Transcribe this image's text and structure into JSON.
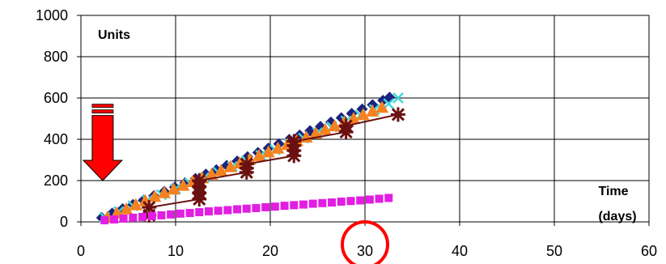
{
  "chart_data": {
    "type": "scatter",
    "title": "",
    "ylabel": "Units",
    "xlabel_line1": "Time",
    "xlabel_line2": "(days)",
    "xlim": [
      0,
      60
    ],
    "ylim": [
      0,
      1000
    ],
    "xticks": [
      0,
      10,
      20,
      30,
      40,
      50,
      60
    ],
    "yticks": [
      0,
      200,
      400,
      600,
      800,
      1000
    ],
    "grid": true,
    "legend": "none",
    "series": [
      {
        "color": "#1a237e",
        "marker": "diamond",
        "line": false,
        "x": [
          2.2,
          3.3,
          4.4,
          5.5,
          6.6,
          7.7,
          8.8,
          9.9,
          11.0,
          12.1,
          13.2,
          14.3,
          15.4,
          16.5,
          17.6,
          18.7,
          19.8,
          20.9,
          22.0,
          23.1,
          24.2,
          25.3,
          26.4,
          27.5,
          28.6,
          29.7,
          30.8,
          31.9,
          32.6
        ],
        "y": [
          20,
          42,
          63,
          84,
          105,
          126,
          147,
          168,
          189,
          210,
          231,
          252,
          273,
          294,
          315,
          336,
          357,
          378,
          399,
          420,
          441,
          462,
          483,
          504,
          525,
          546,
          567,
          588,
          603
        ]
      },
      {
        "color": "#40d8d8",
        "marker": "x",
        "line": false,
        "x": [
          2.5,
          4.0,
          5.5,
          7.0,
          8.5,
          10.0,
          11.5,
          13.0,
          14.5,
          16.0,
          17.5,
          19.0,
          20.5,
          22.0,
          23.5,
          25.0,
          26.5,
          28.0,
          29.5,
          31.0,
          32.5,
          33.5
        ],
        "y": [
          22,
          50,
          78,
          104,
          132,
          160,
          188,
          214,
          240,
          268,
          296,
          322,
          350,
          378,
          406,
          432,
          460,
          488,
          516,
          544,
          572,
          600
        ]
      },
      {
        "color": "#f58220",
        "marker": "triangle",
        "line": false,
        "x": [
          2.8,
          3.8,
          4.8,
          5.8,
          6.8,
          7.8,
          8.8,
          9.8,
          10.8,
          11.8,
          12.8,
          13.8,
          14.8,
          15.8,
          16.8,
          17.8,
          18.8,
          19.8,
          20.8,
          21.8,
          22.8,
          23.8,
          24.8,
          25.8,
          26.8,
          27.8,
          28.8,
          29.8,
          30.8,
          31.8
        ],
        "y": [
          20,
          40,
          60,
          80,
          100,
          120,
          138,
          156,
          174,
          192,
          210,
          228,
          246,
          264,
          282,
          300,
          318,
          336,
          354,
          372,
          390,
          408,
          426,
          444,
          462,
          480,
          498,
          516,
          534,
          552
        ]
      },
      {
        "color": "#6b1010",
        "marker": "star",
        "line": true,
        "x": [
          7.2,
          7.2,
          12.5,
          12.5,
          12.5,
          12.5,
          17.5,
          17.5,
          17.5,
          22.5,
          22.5,
          22.5,
          22.5,
          28.0,
          28.0,
          33.5
        ],
        "y": [
          32,
          70,
          110,
          140,
          170,
          200,
          240,
          260,
          280,
          320,
          345,
          370,
          390,
          435,
          465,
          520
        ]
      },
      {
        "color": "#e21ee2",
        "marker": "square",
        "line": false,
        "x": [
          2.5,
          3.5,
          4.5,
          5.5,
          6.5,
          7.5,
          8.5,
          9.5,
          10.5,
          11.5,
          12.5,
          13.5,
          14.5,
          15.5,
          16.5,
          17.5,
          18.5,
          19.5,
          20.5,
          21.5,
          22.5,
          23.5,
          24.5,
          25.5,
          26.5,
          27.5,
          28.5,
          29.5,
          30.5,
          31.5,
          32.5
        ],
        "y": [
          8,
          12,
          16,
          20,
          24,
          28,
          32,
          36,
          40,
          43,
          47,
          51,
          54,
          57,
          61,
          64,
          67,
          71,
          74,
          78,
          81,
          84,
          88,
          91,
          94,
          98,
          101,
          104,
          108,
          112,
          116
        ]
      }
    ],
    "annotations": [
      {
        "type": "arrow-down",
        "color": "#ff0000",
        "x": 2.3,
        "y_top": 570,
        "y_bottom": 200
      },
      {
        "type": "circle",
        "color": "#ff0000",
        "x": 30,
        "y": -120
      }
    ]
  }
}
